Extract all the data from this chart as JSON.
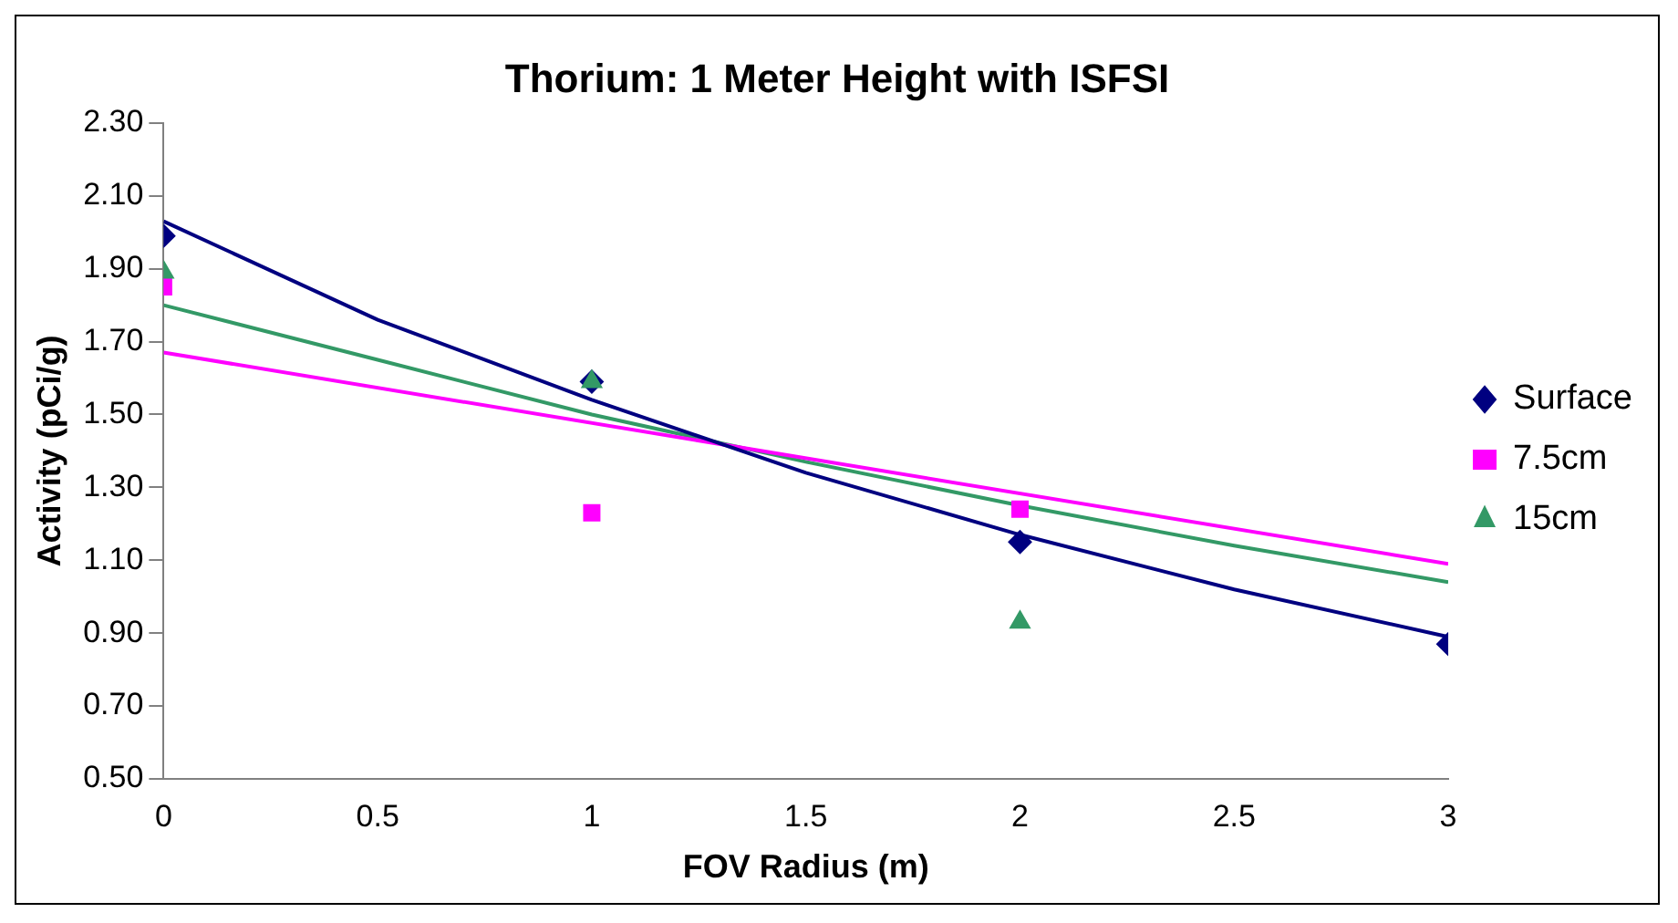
{
  "chart_data": {
    "type": "scatter",
    "title": "Thorium: 1 Meter Height with ISFSI",
    "xlabel": "FOV Radius (m)",
    "ylabel": "Activity (pCi/g)",
    "xlim": [
      0,
      3
    ],
    "xticks": [
      0,
      0.5,
      1,
      1.5,
      2,
      2.5,
      3
    ],
    "ylim": [
      0.5,
      2.3
    ],
    "yticks": [
      {
        "value": 0.5,
        "label": "0.50"
      },
      {
        "value": 0.7,
        "label": "0.70"
      },
      {
        "value": 0.9,
        "label": "0.90"
      },
      {
        "value": 1.1,
        "label": "1.10"
      },
      {
        "value": 1.3,
        "label": "1.30"
      },
      {
        "value": 1.5,
        "label": "1.50"
      },
      {
        "value": 1.7,
        "label": "1.70"
      },
      {
        "value": 1.9,
        "label": "1.90"
      },
      {
        "value": 2.1,
        "label": "2.10"
      },
      {
        "value": 2.3,
        "label": "2.30"
      }
    ],
    "grid": false,
    "legend": "right",
    "series": [
      {
        "type": "line",
        "color": "#000080",
        "marker": "none",
        "x": [
          0,
          0.5,
          1,
          1.5,
          2,
          2.5,
          3
        ],
        "values": [
          2.03,
          1.76,
          1.54,
          1.34,
          1.17,
          1.02,
          0.89
        ]
      },
      {
        "type": "line",
        "color": "#ff00ff",
        "marker": "none",
        "x": [
          0,
          3
        ],
        "values": [
          1.67,
          1.09
        ]
      },
      {
        "type": "line",
        "color": "#339966",
        "marker": "none",
        "x": [
          0,
          0.5,
          1,
          1.5,
          2,
          2.5,
          3
        ],
        "values": [
          1.8,
          1.65,
          1.5,
          1.37,
          1.25,
          1.14,
          1.04
        ]
      },
      {
        "name": "Surface",
        "color": "#000080",
        "marker": "diamond",
        "x": [
          0,
          1,
          2,
          3
        ],
        "values": [
          1.99,
          1.59,
          1.15,
          0.87
        ]
      },
      {
        "name": "7.5cm",
        "color": "#ff00ff",
        "marker": "square",
        "x": [
          0,
          1,
          2
        ],
        "values": [
          1.85,
          1.23,
          1.24
        ]
      },
      {
        "name": "15cm",
        "color": "#339966",
        "marker": "triangle",
        "x": [
          0,
          1,
          2
        ],
        "values": [
          1.89,
          1.59,
          0.93
        ]
      }
    ]
  }
}
